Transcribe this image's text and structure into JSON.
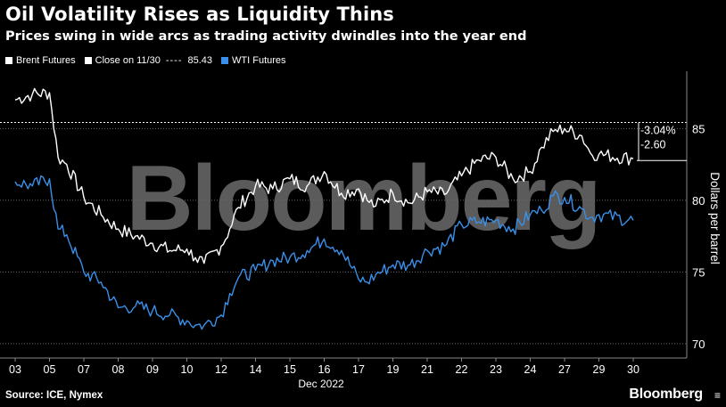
{
  "header": {
    "title": "Oil Volatility Rises as Liquidity Thins",
    "subtitle": "Prices swing in wide arcs as trading activity dwindles into the year end"
  },
  "legend": {
    "brent_label": "Brent Futures",
    "close_label": "Close on 11/30",
    "close_value": "85.43",
    "wti_label": "WTI Futures"
  },
  "colors": {
    "brent": "#ffffff",
    "wti": "#3a8fe8",
    "grid": "#666666",
    "background": "#000000",
    "watermark": "#6b6b6b"
  },
  "watermark": "Bloomberg",
  "footer": {
    "source": "Source: ICE, Nymex",
    "brand": "Bloomberg",
    "brand_icon_name": "bloomberg-chart-icon"
  },
  "chart_data": {
    "type": "line",
    "xlabel": "Dec 2022",
    "ylabel": "Dollars per barrel",
    "ylim": [
      69,
      89
    ],
    "yticks": [
      70,
      75,
      80,
      85
    ],
    "xticks": [
      "03",
      "05",
      "07",
      "08",
      "09",
      "10",
      "12",
      "14",
      "15",
      "16",
      "17",
      "19",
      "21",
      "22",
      "23",
      "24",
      "27",
      "29",
      "30"
    ],
    "reference_line": {
      "label": "Close on 11/30",
      "value": 85.43
    },
    "annotations": [
      {
        "text": "-3.04%",
        "series": "Brent Futures"
      },
      {
        "text": "-2.60",
        "series": "Brent Futures"
      }
    ],
    "grid": true,
    "series": [
      {
        "name": "Brent Futures",
        "points": [
          [
            "03",
            87.0
          ],
          [
            "04",
            87.4
          ],
          [
            "05",
            87.5
          ],
          [
            "05.5",
            83.0
          ],
          [
            "06",
            82.5
          ],
          [
            "07",
            80.2
          ],
          [
            "07.5",
            79.0
          ],
          [
            "08",
            78.0
          ],
          [
            "08.5",
            77.5
          ],
          [
            "09",
            77.0
          ],
          [
            "09.5",
            76.5
          ],
          [
            "10",
            76.6
          ],
          [
            "10.5",
            76.0
          ],
          [
            "11",
            75.6
          ],
          [
            "12",
            76.8
          ],
          [
            "12.5",
            78.0
          ],
          [
            "13",
            79.5
          ],
          [
            "14",
            81.0
          ],
          [
            "14.5",
            80.8
          ],
          [
            "15",
            81.5
          ],
          [
            "15.5",
            81.0
          ],
          [
            "16",
            82.0
          ],
          [
            "16.5",
            80.5
          ],
          [
            "17",
            80.8
          ],
          [
            "17.5",
            80.0
          ],
          [
            "18",
            79.6
          ],
          [
            "19",
            80.5
          ],
          [
            "20",
            79.8
          ],
          [
            "21",
            80.6
          ],
          [
            "21.5",
            80.4
          ],
          [
            "22",
            81.7
          ],
          [
            "22.5",
            82.8
          ],
          [
            "23",
            83.0
          ],
          [
            "23.5",
            81.5
          ],
          [
            "24",
            82.0
          ],
          [
            "25",
            83.7
          ],
          [
            "26",
            84.8
          ],
          [
            "27",
            85.0
          ],
          [
            "28",
            84.5
          ],
          [
            "28.5",
            83.3
          ],
          [
            "29",
            83.2
          ],
          [
            "30",
            82.9
          ]
        ]
      },
      {
        "name": "WTI Futures",
        "points": [
          [
            "03",
            81.3
          ],
          [
            "04",
            81.0
          ],
          [
            "05",
            81.5
          ],
          [
            "05.5",
            78.0
          ],
          [
            "06",
            77.6
          ],
          [
            "07",
            75.0
          ],
          [
            "07.5",
            74.3
          ],
          [
            "08",
            72.5
          ],
          [
            "08.5",
            72.6
          ],
          [
            "09",
            72.3
          ],
          [
            "09.5",
            72.0
          ],
          [
            "10",
            71.6
          ],
          [
            "10.5",
            71.3
          ],
          [
            "11",
            71.3
          ],
          [
            "12",
            72.0
          ],
          [
            "12.5",
            73.5
          ],
          [
            "13",
            74.6
          ],
          [
            "14",
            75.1
          ],
          [
            "14.5",
            75.8
          ],
          [
            "15",
            76.0
          ],
          [
            "15.5",
            76.5
          ],
          [
            "16",
            77.3
          ],
          [
            "16.5",
            76.5
          ],
          [
            "17",
            74.5
          ],
          [
            "17.5",
            74.3
          ],
          [
            "18",
            74.8
          ],
          [
            "19",
            75.5
          ],
          [
            "20",
            75.5
          ],
          [
            "21",
            76.5
          ],
          [
            "21.5",
            76.8
          ],
          [
            "22",
            78.3
          ],
          [
            "22.5",
            78.5
          ],
          [
            "23",
            78.6
          ],
          [
            "23.5",
            78.0
          ],
          [
            "24",
            79.0
          ],
          [
            "25",
            79.3
          ],
          [
            "26",
            80.3
          ],
          [
            "27",
            80.2
          ],
          [
            "28",
            79.4
          ],
          [
            "28.5",
            78.8
          ],
          [
            "29",
            79.0
          ],
          [
            "30",
            78.6
          ]
        ]
      }
    ]
  }
}
